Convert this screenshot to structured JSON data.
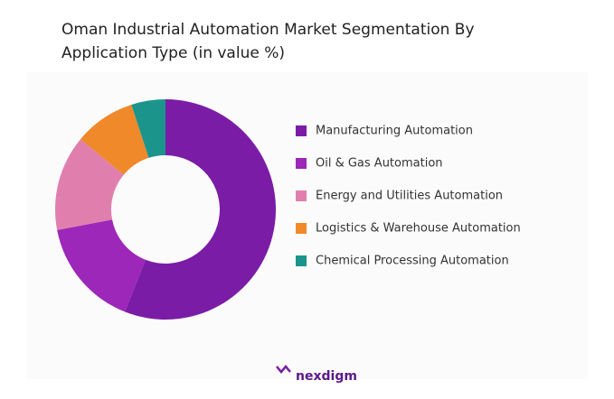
{
  "chart_data": {
    "type": "donut",
    "title": "Oman Industrial Automation Market Segmentation By Application Type (in value %)",
    "categories": [
      "Manufacturing Automation",
      "Oil & Gas Automation",
      "Energy and Utilities Automation",
      "Logistics & Warehouse Automation",
      "Chemical Processing Automation"
    ],
    "values": [
      56,
      16,
      14,
      9,
      5
    ],
    "colors": [
      "#7a1ca6",
      "#9c27b8",
      "#e07fae",
      "#f0892a",
      "#1b958c"
    ]
  },
  "footer": {
    "logo": "nexdigm"
  }
}
